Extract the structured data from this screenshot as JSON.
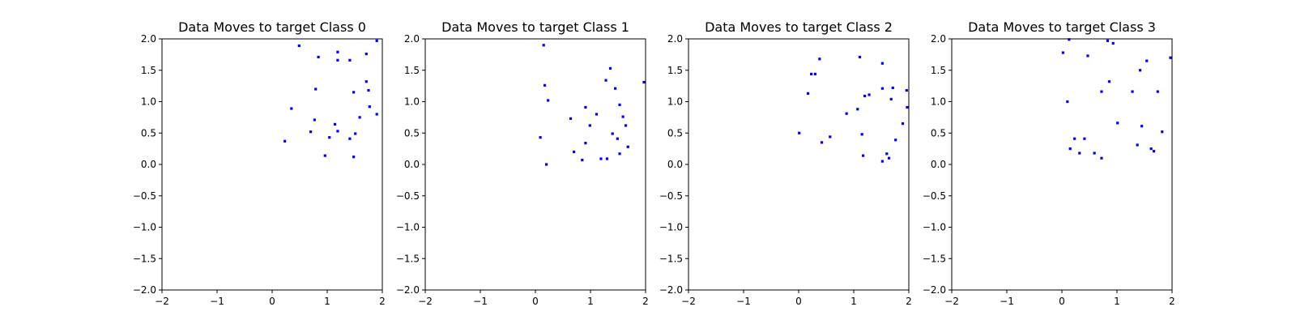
{
  "colors": {
    "points": "#0000ff",
    "axes": "#000000",
    "background": "#ffffff"
  },
  "chart_data": [
    {
      "type": "scatter",
      "title": "Data Moves to target Class 0",
      "xlim": [
        -2,
        2
      ],
      "ylim": [
        -2,
        2
      ],
      "xticks": [
        "−2",
        "−1",
        "0",
        "1",
        "2"
      ],
      "yticks": [
        "−2.0",
        "−1.5",
        "−1.0",
        "−0.5",
        "0.0",
        "0.5",
        "1.0",
        "1.5",
        "2.0"
      ],
      "grid": false,
      "series": [
        {
          "color": "#0000ff",
          "points": [
            [
              0.23,
              0.37
            ],
            [
              0.35,
              0.89
            ],
            [
              0.49,
              1.89
            ],
            [
              0.7,
              0.52
            ],
            [
              0.77,
              0.71
            ],
            [
              0.79,
              1.2
            ],
            [
              0.84,
              1.71
            ],
            [
              0.96,
              0.14
            ],
            [
              1.04,
              0.43
            ],
            [
              1.14,
              0.64
            ],
            [
              1.19,
              0.53
            ],
            [
              1.19,
              1.66
            ],
            [
              1.19,
              1.79
            ],
            [
              1.41,
              0.41
            ],
            [
              1.41,
              1.66
            ],
            [
              1.48,
              1.15
            ],
            [
              1.48,
              0.12
            ],
            [
              1.51,
              0.49
            ],
            [
              1.59,
              0.75
            ],
            [
              1.71,
              1.76
            ],
            [
              1.71,
              1.32
            ],
            [
              1.75,
              1.18
            ],
            [
              1.77,
              0.92
            ],
            [
              1.9,
              1.97
            ],
            [
              1.9,
              0.8
            ]
          ]
        }
      ]
    },
    {
      "type": "scatter",
      "title": "Data Moves to target Class 1",
      "xlim": [
        -2,
        2
      ],
      "ylim": [
        -2,
        2
      ],
      "xticks": [
        "−2",
        "−1",
        "0",
        "1",
        "2"
      ],
      "yticks": [
        "−2.0",
        "−1.5",
        "−1.0",
        "−0.5",
        "0.0",
        "0.5",
        "1.0",
        "1.5",
        "2.0"
      ],
      "grid": false,
      "series": [
        {
          "color": "#0000ff",
          "points": [
            [
              0.09,
              0.43
            ],
            [
              0.15,
              1.9
            ],
            [
              0.17,
              1.26
            ],
            [
              0.2,
              0.0
            ],
            [
              0.23,
              1.02
            ],
            [
              0.64,
              0.73
            ],
            [
              0.7,
              0.2
            ],
            [
              0.85,
              0.07
            ],
            [
              0.91,
              0.91
            ],
            [
              0.91,
              0.34
            ],
            [
              0.99,
              0.62
            ],
            [
              1.11,
              0.8
            ],
            [
              1.19,
              0.09
            ],
            [
              1.28,
              1.34
            ],
            [
              1.3,
              0.09
            ],
            [
              1.36,
              1.53
            ],
            [
              1.4,
              0.49
            ],
            [
              1.45,
              1.21
            ],
            [
              1.49,
              0.41
            ],
            [
              1.53,
              0.95
            ],
            [
              1.53,
              0.17
            ],
            [
              1.59,
              0.76
            ],
            [
              1.64,
              0.62
            ],
            [
              1.68,
              0.28
            ],
            [
              1.97,
              1.31
            ]
          ]
        }
      ]
    },
    {
      "type": "scatter",
      "title": "Data Moves to target Class 2",
      "xlim": [
        -2,
        2
      ],
      "ylim": [
        -2,
        2
      ],
      "xticks": [
        "−2",
        "−1",
        "0",
        "1",
        "2"
      ],
      "yticks": [
        "−2.0",
        "−1.5",
        "−1.0",
        "−0.5",
        "0.0",
        "0.5",
        "1.0",
        "1.5",
        "2.0"
      ],
      "grid": false,
      "series": [
        {
          "color": "#0000ff",
          "points": [
            [
              0.01,
              0.5
            ],
            [
              0.17,
              1.13
            ],
            [
              0.23,
              1.44
            ],
            [
              0.3,
              1.44
            ],
            [
              0.38,
              1.68
            ],
            [
              0.42,
              0.35
            ],
            [
              0.57,
              0.44
            ],
            [
              0.87,
              0.81
            ],
            [
              1.07,
              0.88
            ],
            [
              1.11,
              1.71
            ],
            [
              1.15,
              0.48
            ],
            [
              1.17,
              0.14
            ],
            [
              1.2,
              1.09
            ],
            [
              1.28,
              1.11
            ],
            [
              1.52,
              1.21
            ],
            [
              1.52,
              0.05
            ],
            [
              1.52,
              1.61
            ],
            [
              1.6,
              0.17
            ],
            [
              1.64,
              0.1
            ],
            [
              1.68,
              1.04
            ],
            [
              1.71,
              1.22
            ],
            [
              1.76,
              0.39
            ],
            [
              1.89,
              0.65
            ],
            [
              1.96,
              1.18
            ],
            [
              1.97,
              0.91
            ]
          ]
        }
      ]
    },
    {
      "type": "scatter",
      "title": "Data Moves to target Class 3",
      "xlim": [
        -2,
        2
      ],
      "ylim": [
        -2,
        2
      ],
      "xticks": [
        "−2",
        "−1",
        "0",
        "1",
        "2"
      ],
      "yticks": [
        "−2.0",
        "−1.5",
        "−1.0",
        "−0.5",
        "0.0",
        "0.5",
        "1.0",
        "1.5",
        "2.0"
      ],
      "grid": false,
      "series": [
        {
          "color": "#0000ff",
          "points": [
            [
              0.02,
              1.78
            ],
            [
              0.1,
              1.0
            ],
            [
              0.13,
              1.99
            ],
            [
              0.15,
              0.25
            ],
            [
              0.23,
              0.41
            ],
            [
              0.32,
              0.18
            ],
            [
              0.41,
              0.41
            ],
            [
              0.47,
              1.73
            ],
            [
              0.59,
              0.18
            ],
            [
              0.72,
              0.1
            ],
            [
              0.72,
              1.16
            ],
            [
              0.83,
              1.97
            ],
            [
              0.86,
              1.32
            ],
            [
              0.93,
              1.93
            ],
            [
              1.01,
              0.66
            ],
            [
              1.28,
              1.16
            ],
            [
              1.37,
              0.31
            ],
            [
              1.42,
              1.5
            ],
            [
              1.45,
              0.61
            ],
            [
              1.54,
              1.65
            ],
            [
              1.62,
              0.25
            ],
            [
              1.67,
              0.21
            ],
            [
              1.74,
              1.16
            ],
            [
              1.82,
              0.52
            ],
            [
              1.97,
              1.7
            ]
          ]
        }
      ]
    }
  ]
}
